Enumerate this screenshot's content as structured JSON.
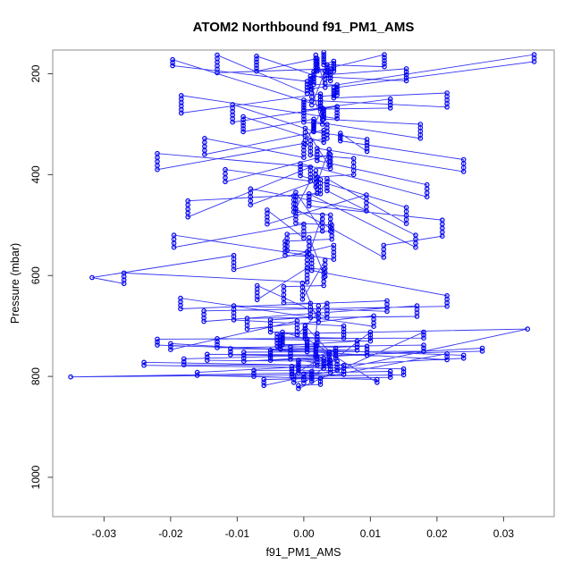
{
  "chart_data": {
    "type": "scatter",
    "lines_between_points": true,
    "title": "ATOM2 Northbound f91_PM1_AMS",
    "xlabel": "f91_PM1_AMS",
    "ylabel": "Pressure (mbar)",
    "xlim": [
      -0.0377,
      0.0376
    ],
    "ylim": [
      153,
      1078
    ],
    "y_axis_reversed": true,
    "grid": false,
    "legend": null,
    "marker": "open-circle",
    "series_color": "#0000EE",
    "box_color": "#8f8f8f",
    "tick_color": "#404040",
    "x_ticks": {
      "values": [
        -0.03,
        -0.02,
        -0.01,
        0.0,
        0.01,
        0.02,
        0.03
      ],
      "labels": [
        "-0.03",
        "-0.02",
        "-0.01",
        "0.00",
        "0.01",
        "0.02",
        "0.03"
      ]
    },
    "y_ticks": {
      "values": [
        200,
        400,
        600,
        800,
        1000
      ],
      "labels": [
        "200",
        "400",
        "600",
        "800",
        "1000"
      ]
    },
    "profiles_format": [
      "x_value",
      "pressure_start_mbar",
      "n_points",
      "pressure_step_mbar"
    ],
    "profiles": [
      [
        0.003,
        157,
        6,
        5
      ],
      [
        0.0045,
        175,
        5,
        5
      ],
      [
        0.0015,
        196,
        6,
        5
      ],
      [
        0.005,
        222,
        5,
        5
      ],
      [
        0.0025,
        245,
        5,
        6
      ],
      [
        0.0,
        272,
        5,
        6
      ],
      [
        0.0035,
        300,
        5,
        7
      ],
      [
        0.001,
        333,
        5,
        7
      ],
      [
        0.0075,
        368,
        5,
        8
      ],
      [
        0.002,
        405,
        5,
        8
      ],
      [
        -0.0015,
        442,
        5,
        8
      ],
      [
        0.004,
        480,
        5,
        8
      ],
      [
        -0.0025,
        518,
        5,
        8
      ],
      [
        0.0005,
        553,
        5,
        8
      ],
      [
        0.003,
        588,
        5,
        8
      ],
      [
        -0.003,
        622,
        5,
        8
      ],
      [
        0.001,
        655,
        5,
        7
      ],
      [
        -0.005,
        688,
        5,
        6
      ],
      [
        0.002,
        715,
        5,
        6
      ],
      [
        -0.002,
        742,
        5,
        6
      ],
      [
        0.004,
        768,
        5,
        6
      ],
      [
        0.0,
        795,
        4,
        6
      ],
      [
        0.01,
        712,
        4,
        6
      ],
      [
        -0.013,
        725,
        4,
        6
      ],
      [
        0.018,
        738,
        3,
        6
      ],
      [
        -0.009,
        752,
        4,
        6
      ],
      [
        0.0268,
        744,
        2,
        6
      ],
      [
        -0.018,
        765,
        3,
        6
      ],
      [
        0.006,
        778,
        4,
        6
      ],
      [
        -0.035,
        801,
        1,
        0
      ],
      [
        0.013,
        790,
        3,
        6
      ],
      [
        -0.006,
        806,
        3,
        6
      ],
      [
        0.0336,
        706,
        1,
        0
      ],
      [
        -0.004,
        716,
        5,
        6
      ],
      [
        0.008,
        730,
        4,
        6
      ],
      [
        -0.011,
        745,
        3,
        6
      ],
      [
        0.002,
        760,
        4,
        6
      ],
      [
        -0.024,
        772,
        2,
        6
      ],
      [
        0.015,
        785,
        3,
        6
      ],
      [
        -0.0015,
        800,
        3,
        6
      ],
      [
        0.0215,
        755,
        3,
        6
      ],
      [
        -0.02,
        735,
        3,
        6
      ],
      [
        -0.001,
        690,
        5,
        7
      ],
      [
        0.0035,
        655,
        5,
        7
      ],
      [
        -0.007,
        620,
        5,
        7
      ],
      [
        0.0005,
        585,
        5,
        7
      ],
      [
        -0.027,
        595,
        4,
        7
      ],
      [
        -0.0318,
        604,
        1,
        0
      ],
      [
        -0.0105,
        560,
        5,
        7
      ],
      [
        0.0045,
        540,
        5,
        7
      ],
      [
        -0.0195,
        520,
        4,
        8
      ],
      [
        0.0,
        498,
        5,
        7
      ],
      [
        -0.0055,
        470,
        5,
        7
      ],
      [
        0.0094,
        440,
        5,
        8
      ],
      [
        -0.008,
        428,
        5,
        8
      ],
      [
        0.0025,
        410,
        5,
        7
      ],
      [
        -0.0174,
        452,
        5,
        8
      ],
      [
        0.001,
        385,
        5,
        7
      ],
      [
        -0.0118,
        390,
        4,
        8
      ],
      [
        0.004,
        360,
        5,
        7
      ],
      [
        -0.022,
        358,
        5,
        8
      ],
      [
        0.0,
        338,
        5,
        7
      ],
      [
        -0.0149,
        328,
        5,
        8
      ],
      [
        0.003,
        312,
        5,
        6
      ],
      [
        -0.0091,
        285,
        6,
        6
      ],
      [
        0.0015,
        290,
        5,
        6
      ],
      [
        -0.0107,
        261,
        6,
        7
      ],
      [
        0.005,
        265,
        5,
        6
      ],
      [
        -0.0184,
        243,
        6,
        7
      ],
      [
        0.0025,
        240,
        5,
        6
      ],
      [
        -0.0197,
        172,
        3,
        6
      ],
      [
        0.0005,
        215,
        5,
        6
      ],
      [
        -0.013,
        163,
        6,
        7
      ],
      [
        0.004,
        190,
        5,
        6
      ],
      [
        -0.0071,
        165,
        6,
        6
      ],
      [
        0.002,
        170,
        6,
        5
      ],
      [
        0.0121,
        162,
        5,
        6
      ],
      [
        0.0035,
        182,
        5,
        5
      ],
      [
        0.0154,
        190,
        5,
        6
      ],
      [
        0.001,
        205,
        6,
        5
      ],
      [
        0.0346,
        162,
        3,
        7
      ],
      [
        0.0045,
        228,
        5,
        5
      ],
      [
        0.0215,
        238,
        5,
        7
      ],
      [
        0.0,
        252,
        5,
        5
      ],
      [
        0.013,
        250,
        4,
        6
      ],
      [
        0.003,
        270,
        5,
        5
      ],
      [
        0.0175,
        300,
        5,
        7
      ],
      [
        0.0015,
        295,
        5,
        5
      ],
      [
        0.0095,
        330,
        5,
        6
      ],
      [
        0.0055,
        318,
        4,
        5
      ],
      [
        0.024,
        370,
        4,
        8
      ],
      [
        0.002,
        348,
        5,
        6
      ],
      [
        0.0185,
        420,
        4,
        8
      ],
      [
        -0.0005,
        378,
        5,
        6
      ],
      [
        0.0154,
        465,
        5,
        8
      ],
      [
        0.0035,
        408,
        5,
        6
      ],
      [
        0.0168,
        520,
        4,
        8
      ],
      [
        0.0008,
        438,
        5,
        6
      ],
      [
        0.0208,
        490,
        5,
        8
      ],
      [
        0.012,
        540,
        4,
        8
      ],
      [
        -0.0012,
        468,
        5,
        7
      ],
      [
        0.0042,
        500,
        5,
        7
      ],
      [
        -0.0028,
        532,
        5,
        7
      ],
      [
        0.0012,
        562,
        5,
        7
      ],
      [
        0.0215,
        640,
        4,
        7
      ],
      [
        -0.015,
        670,
        4,
        7
      ],
      [
        0.017,
        660,
        4,
        7
      ],
      [
        -0.0085,
        685,
        4,
        7
      ],
      [
        0.0105,
        680,
        4,
        7
      ],
      [
        -0.0185,
        645,
        4,
        7
      ],
      [
        0.0125,
        650,
        4,
        7
      ],
      [
        -0.0105,
        660,
        5,
        7
      ],
      [
        0.006,
        700,
        5,
        6
      ],
      [
        -0.0035,
        722,
        5,
        6
      ],
      [
        0.0095,
        740,
        4,
        6
      ],
      [
        -0.0145,
        756,
        3,
        6
      ],
      [
        0.005,
        770,
        4,
        6
      ],
      [
        -0.0075,
        788,
        3,
        6
      ],
      [
        0.0025,
        804,
        3,
        6
      ],
      [
        -0.0008,
        818,
        2,
        6
      ],
      [
        0.018,
        712,
        3,
        6
      ],
      [
        -0.022,
        726,
        3,
        6
      ],
      [
        0.024,
        758,
        2,
        6
      ],
      [
        -0.016,
        792,
        2,
        6
      ],
      [
        0.011,
        806,
        2,
        6
      ],
      [
        0.0005,
        726,
        6,
        5
      ],
      [
        -0.005,
        748,
        5,
        5
      ],
      [
        0.003,
        764,
        5,
        5
      ],
      [
        -0.0018,
        780,
        5,
        5
      ],
      [
        0.0048,
        744,
        5,
        5
      ],
      [
        0.0002,
        700,
        6,
        5
      ],
      [
        -0.0032,
        712,
        6,
        5
      ],
      [
        0.0018,
        736,
        6,
        5
      ],
      [
        0.0038,
        752,
        6,
        5
      ],
      [
        -0.0008,
        768,
        6,
        5
      ],
      [
        0.0012,
        790,
        5,
        5
      ],
      [
        0.0022,
        660,
        5,
        8
      ],
      [
        -0.0002,
        615,
        5,
        8
      ],
      [
        0.0032,
        570,
        5,
        8
      ],
      [
        0.0008,
        525,
        5,
        8
      ],
      [
        0.0028,
        480,
        5,
        8
      ],
      [
        -0.0012,
        435,
        5,
        8
      ],
      [
        0.0018,
        392,
        5,
        8
      ],
      [
        0.0038,
        350,
        5,
        8
      ],
      [
        0.0002,
        308,
        5,
        8
      ],
      [
        0.0028,
        268,
        5,
        8
      ],
      [
        0.0012,
        230,
        5,
        8
      ],
      [
        0.0032,
        195,
        5,
        8
      ],
      [
        0.0018,
        163,
        6,
        6
      ]
    ]
  }
}
